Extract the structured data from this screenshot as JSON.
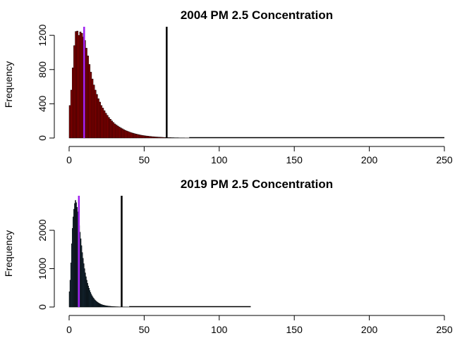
{
  "chart_data": [
    {
      "type": "histogram",
      "title": "2004 PM 2.5 Concentration",
      "xlabel": "",
      "ylabel": "Frequency",
      "xlim": [
        0,
        250
      ],
      "ylim": [
        0,
        1300
      ],
      "x_ticks": [
        0,
        50,
        100,
        150,
        200,
        250
      ],
      "y_ticks": [
        0,
        400,
        800,
        1200
      ],
      "bin_width": 1,
      "bar_color": "#8b0000",
      "bar_border": "#000000",
      "bins_start": 0,
      "counts": [
        380,
        560,
        820,
        1080,
        1245,
        1250,
        1200,
        1240,
        1225,
        1180,
        1140,
        1050,
        960,
        860,
        770,
        690,
        620,
        560,
        510,
        460,
        420,
        380,
        350,
        320,
        290,
        265,
        240,
        220,
        200,
        182,
        165,
        152,
        140,
        128,
        118,
        108,
        98,
        90,
        82,
        75,
        68,
        62,
        57,
        52,
        47,
        43,
        39,
        35,
        32,
        29,
        26,
        24,
        22,
        20,
        18,
        16,
        15,
        13,
        12,
        11,
        10,
        9,
        8,
        7,
        7,
        6,
        5,
        5,
        4,
        4,
        3,
        3,
        3,
        2,
        2,
        2,
        2,
        1,
        1,
        1
      ],
      "tail_extent": 250,
      "vlines": [
        {
          "x": 10,
          "color": "#a020f0"
        },
        {
          "x": 65,
          "color": "#000000"
        }
      ]
    },
    {
      "type": "histogram",
      "title": "2019 PM 2.5 Concentration",
      "xlabel": "",
      "ylabel": "Frequency",
      "xlim": [
        0,
        250
      ],
      "ylim": [
        0,
        2900
      ],
      "x_ticks": [
        0,
        50,
        100,
        150,
        200,
        250
      ],
      "y_ticks": [
        0,
        1000,
        2000
      ],
      "bin_width": 0.5,
      "bar_color": "#1f3a4d",
      "bar_border": "#000000",
      "bins_start": 0,
      "counts": [
        400,
        700,
        1150,
        1650,
        2050,
        2350,
        2550,
        2700,
        2780,
        2720,
        2600,
        2480,
        2300,
        2120,
        1950,
        1780,
        1600,
        1420,
        1270,
        1130,
        1000,
        890,
        790,
        700,
        620,
        550,
        490,
        430,
        380,
        335,
        295,
        262,
        232,
        205,
        182,
        162,
        144,
        128,
        114,
        101,
        90,
        80,
        71,
        63,
        56,
        50,
        45,
        40,
        36,
        32,
        29,
        26,
        23,
        21,
        19,
        17,
        15,
        14,
        12,
        11,
        10,
        9,
        8,
        7,
        7,
        6,
        5,
        5,
        4,
        4,
        4,
        3,
        3,
        3,
        2,
        2,
        2,
        2,
        2,
        1
      ],
      "tail_extent": 121,
      "vlines": [
        {
          "x": 6.5,
          "color": "#a020f0"
        },
        {
          "x": 35,
          "color": "#000000"
        }
      ]
    }
  ]
}
